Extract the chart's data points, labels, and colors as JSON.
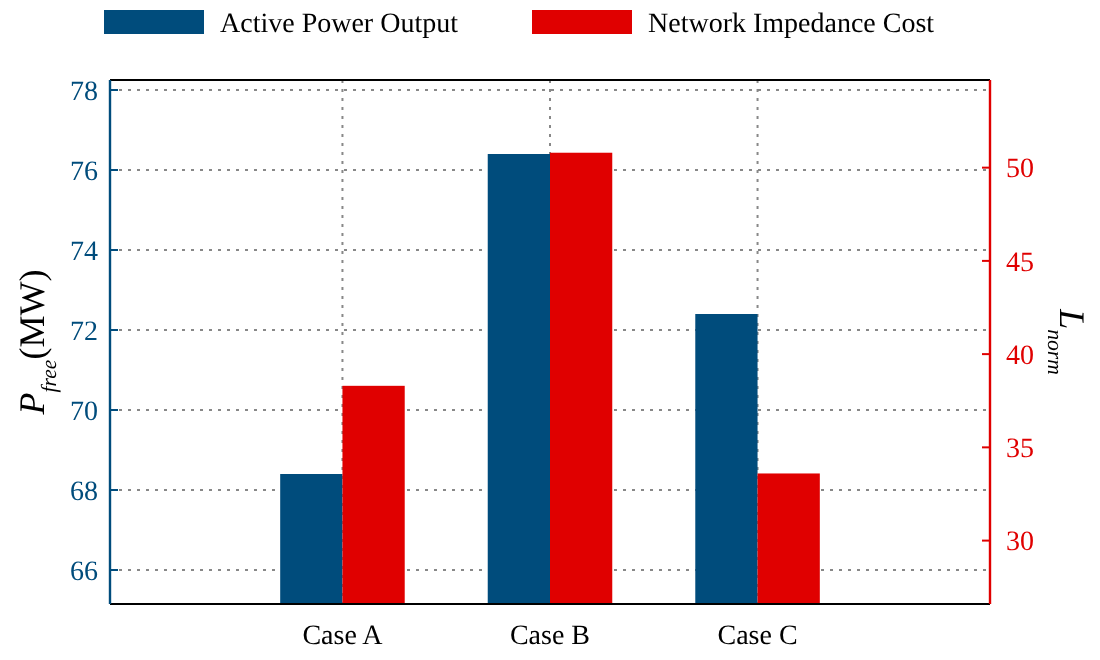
{
  "chart_data": {
    "type": "bar",
    "categories": [
      "Case A",
      "Case B",
      "Case C"
    ],
    "ylabel": "P$_{free}$(MW)",
    "y2label": "L$_{norm}$",
    "series": [
      {
        "name": "Active Power Output",
        "color": "#004c7c",
        "values": [
          68.4,
          76.4,
          72.4
        ]
      },
      {
        "name": "Network Impedance Cost",
        "color": "#e00000",
        "values": [
          38.3,
          50.8,
          33.6
        ],
        "axis": "y2"
      }
    ],
    "ylim": [
      65.15,
      78.25
    ],
    "yticks": [
      66,
      68,
      70,
      72,
      74,
      76,
      78
    ],
    "y2lim": [
      26.6,
      54.7
    ],
    "y2ticks": [
      30,
      35,
      40,
      45,
      50
    ],
    "grid": true,
    "legend": "top"
  }
}
